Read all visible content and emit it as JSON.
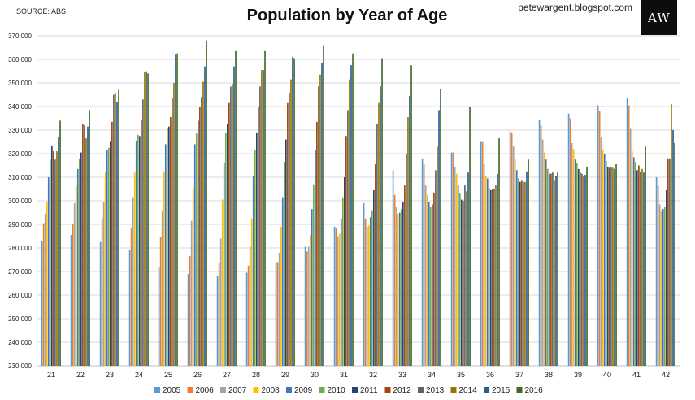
{
  "header": {
    "source": "SOURCE: ABS",
    "blog": "petewargent.blogspot.com",
    "logo_text": "AW"
  },
  "chart_data": {
    "type": "bar",
    "title": "Population by Year of Age",
    "xlabel": "",
    "ylabel": "",
    "ylim": [
      230000,
      370000
    ],
    "y_ticks": [
      "230,000",
      "240,000",
      "250,000",
      "260,000",
      "270,000",
      "280,000",
      "290,000",
      "300,000",
      "310,000",
      "320,000",
      "330,000",
      "340,000",
      "350,000",
      "360,000",
      "370,000"
    ],
    "grid": true,
    "legend_position": "bottom",
    "categories": [
      "21",
      "22",
      "23",
      "24",
      "25",
      "26",
      "27",
      "28",
      "29",
      "30",
      "31",
      "32",
      "33",
      "34",
      "35",
      "36",
      "37",
      "38",
      "39",
      "40",
      "41",
      "42"
    ],
    "series": [
      {
        "name": "2005",
        "color": "#5b9bd5",
        "values": [
          283000,
          285500,
          282500,
          279000,
          272000,
          269000,
          268000,
          269500,
          274000,
          280500,
          289000,
          299000,
          313000,
          318000,
          320500,
          325000,
          329500,
          334500,
          337000,
          340500,
          343500,
          310000
        ]
      },
      {
        "name": "2006",
        "color": "#ed7d31",
        "values": [
          290500,
          290000,
          292500,
          288500,
          284500,
          276500,
          273500,
          272500,
          274000,
          278500,
          288500,
          292500,
          302500,
          315500,
          320500,
          325000,
          329000,
          332000,
          335000,
          338000,
          340500,
          306500
        ]
      },
      {
        "name": "2007",
        "color": "#a5a5a5",
        "values": [
          294500,
          299000,
          299500,
          301500,
          296000,
          291500,
          284000,
          280500,
          278000,
          280500,
          285000,
          289000,
          297500,
          306500,
          314500,
          315500,
          323000,
          326000,
          324500,
          327000,
          330500,
          298500
        ]
      },
      {
        "name": "2008",
        "color": "#ffc000",
        "values": [
          299500,
          306000,
          312000,
          312000,
          312500,
          305500,
          300500,
          292500,
          289000,
          285500,
          286000,
          289500,
          294500,
          302500,
          311500,
          310500,
          318000,
          320500,
          322000,
          321500,
          321000,
          295500
        ]
      },
      {
        "name": "2009",
        "color": "#4472c4",
        "values": [
          310000,
          313500,
          321500,
          325500,
          324000,
          324000,
          316000,
          310500,
          301500,
          296500,
          292500,
          293000,
          295000,
          299500,
          306500,
          309500,
          313000,
          317500,
          317500,
          320000,
          318500,
          296500
        ]
      },
      {
        "name": "2010",
        "color": "#70ad47",
        "values": [
          317500,
          318000,
          322500,
          328000,
          331000,
          328500,
          329000,
          321500,
          316500,
          307000,
          301500,
          296000,
          296500,
          297500,
          303000,
          305500,
          309500,
          313500,
          316000,
          317000,
          316500,
          297500
        ]
      },
      {
        "name": "2011",
        "color": "#264478",
        "values": [
          323500,
          320500,
          325000,
          327500,
          331500,
          334000,
          332500,
          329000,
          326000,
          321500,
          310000,
          304500,
          299500,
          298500,
          300500,
          304500,
          308000,
          311500,
          313500,
          314500,
          313000,
          304500
        ]
      },
      {
        "name": "2012",
        "color": "#9e480e",
        "values": [
          321000,
          332500,
          333500,
          334500,
          335500,
          340000,
          341500,
          340000,
          341500,
          333500,
          327500,
          315500,
          306500,
          303500,
          300000,
          305000,
          308500,
          311500,
          312000,
          314000,
          315000,
          318000
        ]
      },
      {
        "name": "2013",
        "color": "#636363",
        "values": [
          317500,
          332000,
          345000,
          343000,
          343500,
          344000,
          348500,
          348500,
          345500,
          348500,
          338500,
          332500,
          320000,
          313000,
          306500,
          305000,
          308000,
          312000,
          311500,
          314500,
          312500,
          318000
        ]
      },
      {
        "name": "2014",
        "color": "#997300",
        "values": [
          321000,
          326500,
          345500,
          354500,
          350000,
          350500,
          349500,
          355500,
          351500,
          353500,
          351500,
          341500,
          335500,
          323000,
          304000,
          306500,
          308000,
          308500,
          310500,
          314000,
          313500,
          341000
        ]
      },
      {
        "name": "2015",
        "color": "#255e91",
        "values": [
          327000,
          331500,
          342000,
          355000,
          362000,
          357000,
          357000,
          355500,
          361000,
          358500,
          357500,
          348500,
          344500,
          338500,
          312000,
          311500,
          312500,
          310500,
          311000,
          313500,
          312000,
          330000
        ]
      },
      {
        "name": "2016",
        "color": "#43682b",
        "values": [
          334000,
          338500,
          347000,
          354000,
          362500,
          368000,
          363500,
          363500,
          360500,
          366000,
          362500,
          360500,
          357500,
          347500,
          340000,
          326500,
          317500,
          312000,
          314500,
          315500,
          323000,
          324500
        ]
      }
    ]
  }
}
